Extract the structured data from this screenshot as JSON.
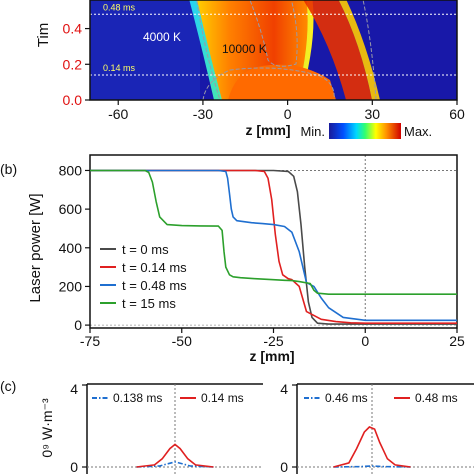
{
  "chart_data": [
    {
      "type": "heatmap",
      "ylabel": "Tim",
      "xlabel": "z [mm]",
      "xlim": [
        -70,
        60
      ],
      "ylim": [
        0,
        0.56
      ],
      "xticks": [
        "-60",
        "-30",
        "0",
        "30",
        "60"
      ],
      "xtick_values": [
        -60,
        -30,
        0,
        30,
        60
      ],
      "yticks": [
        "0.0",
        "0.2",
        "0.4"
      ],
      "ytick_values": [
        0.0,
        0.2,
        0.4
      ],
      "time_markers": [
        {
          "label": "0.48 ms",
          "t": 0.48
        },
        {
          "label": "0.14 ms",
          "t": 0.14
        }
      ],
      "annotations": [
        {
          "label": "4000 K",
          "z": -42,
          "t": 0.3
        },
        {
          "label": "10000 K",
          "z": -6,
          "t": 0.235
        }
      ],
      "colorbar": {
        "min_label": "Min.",
        "max_label": "Max."
      }
    },
    {
      "type": "line",
      "panel_label": "(b)",
      "xlabel": "z [mm]",
      "ylabel": "Laser power [W]",
      "xlim": [
        -75,
        25
      ],
      "ylim": [
        -15,
        880
      ],
      "xticks": [
        "-75",
        "-50",
        "-25",
        "0",
        "25"
      ],
      "xtick_values": [
        -75,
        -50,
        -25,
        0,
        25
      ],
      "yticks": [
        "0",
        "200",
        "400",
        "600",
        "800"
      ],
      "ytick_values": [
        0,
        200,
        400,
        600,
        800
      ],
      "legend_loc": "lower left",
      "series": [
        {
          "name": "t = 0 ms",
          "color": "#4a4a4a",
          "x": [
            -75,
            -25,
            -21,
            -19.5,
            -18.5,
            -17.5,
            -16.5,
            -15.5,
            -14.5,
            -13,
            -10,
            0,
            25
          ],
          "y": [
            800,
            800,
            795,
            770,
            690,
            520,
            300,
            120,
            40,
            10,
            5,
            5,
            5
          ]
        },
        {
          "name": "t = 0.14 ms",
          "color": "#e02020",
          "x": [
            -75,
            -30,
            -27.5,
            -26.5,
            -25.5,
            -24.5,
            -23.5,
            -22.5,
            -21,
            -20,
            -18,
            -16,
            -12,
            -8,
            -4,
            0,
            25
          ],
          "y": [
            800,
            800,
            795,
            760,
            650,
            470,
            330,
            260,
            240,
            235,
            200,
            70,
            30,
            18,
            12,
            10,
            10
          ]
        },
        {
          "name": "t = 0.48 ms",
          "color": "#1f6fd0",
          "x": [
            -75,
            -40,
            -38,
            -37.5,
            -37,
            -36.5,
            -36,
            -35,
            -33,
            -31,
            -28,
            -25,
            -22,
            -20,
            -18,
            -16,
            -14,
            -12,
            -10,
            -6,
            0,
            25
          ],
          "y": [
            800,
            800,
            795,
            760,
            680,
            600,
            560,
            540,
            535,
            530,
            525,
            520,
            510,
            480,
            380,
            220,
            200,
            140,
            90,
            40,
            25,
            25
          ]
        },
        {
          "name": "t = 15 ms",
          "color": "#2ca02c",
          "x": [
            -75,
            -60,
            -59,
            -58,
            -57,
            -56,
            -54,
            -50,
            -45,
            -40,
            -39,
            -38.5,
            -38,
            -37,
            -36,
            -34,
            -30,
            -25,
            -22,
            -20,
            -18,
            -15,
            -14,
            -13,
            -10,
            0,
            25
          ],
          "y": [
            800,
            800,
            790,
            740,
            640,
            560,
            520,
            515,
            513,
            512,
            490,
            380,
            300,
            260,
            250,
            245,
            240,
            235,
            232,
            230,
            225,
            215,
            180,
            165,
            160,
            160,
            160
          ]
        }
      ],
      "reference_lines": {
        "y": 800,
        "x": 0
      }
    },
    {
      "type": "line",
      "panel_label": "(c)",
      "ylabel": "0⁹ W·m⁻³",
      "subplots": [
        {
          "yticks": [
            "4",
            "0"
          ],
          "ytick_values": [
            4,
            0
          ],
          "series": [
            {
              "name": "0.138 ms",
              "color": "#1f6fd0",
              "style": "dash-dot",
              "x": [
                -1.5,
                -0.6,
                -0.3,
                0,
                0.3,
                0.6,
                1.5
              ],
              "y": [
                0,
                0.05,
                0.15,
                0.25,
                0.15,
                0.05,
                0
              ]
            },
            {
              "name": "0.14 ms",
              "color": "#e02020",
              "x": [
                -1.5,
                -0.8,
                -0.5,
                -0.2,
                0,
                0.2,
                0.5,
                0.8,
                1.5
              ],
              "y": [
                0,
                0.1,
                0.4,
                0.9,
                1.1,
                0.9,
                0.4,
                0.1,
                0
              ]
            }
          ]
        },
        {
          "yticks": [
            "4",
            "0"
          ],
          "ytick_values": [
            4,
            0
          ],
          "series": [
            {
              "name": "0.46 ms",
              "color": "#1f6fd0",
              "style": "dash-dot",
              "x": [
                -1.5,
                -0.5,
                0,
                0.5,
                1.5
              ],
              "y": [
                0,
                0.02,
                0.05,
                0.02,
                0
              ]
            },
            {
              "name": "0.48 ms",
              "color": "#e02020",
              "x": [
                -1.5,
                -0.9,
                -0.6,
                -0.3,
                -0.1,
                0.1,
                0.3,
                0.6,
                0.9,
                1.5
              ],
              "y": [
                0,
                0.2,
                0.9,
                1.7,
                1.95,
                1.85,
                1.2,
                0.4,
                0.1,
                0
              ]
            }
          ]
        }
      ]
    }
  ]
}
